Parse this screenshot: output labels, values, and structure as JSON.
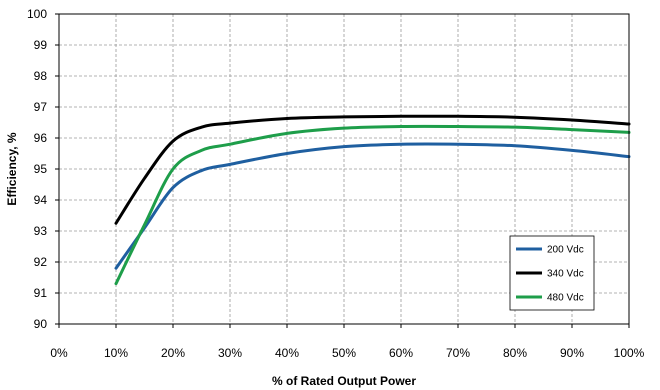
{
  "chart_data": {
    "type": "line",
    "xlabel": "% of Rated Output Power",
    "ylabel": "Efficiency, %",
    "xlim": [
      0,
      100
    ],
    "ylim": [
      90,
      100
    ],
    "x_ticks": [
      0,
      10,
      20,
      30,
      40,
      50,
      60,
      70,
      80,
      90,
      100
    ],
    "x_tick_labels": [
      "0%",
      "10%",
      "20%",
      "30%",
      "40%",
      "50%",
      "60%",
      "70%",
      "80%",
      "90%",
      "100%"
    ],
    "y_ticks": [
      90,
      91,
      92,
      93,
      94,
      95,
      96,
      97,
      98,
      99,
      100
    ],
    "y_tick_labels": [
      "90",
      "91",
      "92",
      "93",
      "94",
      "95",
      "96",
      "97",
      "98",
      "99",
      "100"
    ],
    "grid": true,
    "legend_position": "bottom-right",
    "series": [
      {
        "name": "200 Vdc",
        "color": "#1f5fa0",
        "x": [
          10,
          15,
          20,
          25,
          30,
          40,
          50,
          60,
          70,
          80,
          90,
          100
        ],
        "y": [
          91.8,
          93.1,
          94.4,
          94.95,
          95.15,
          95.5,
          95.72,
          95.8,
          95.8,
          95.75,
          95.6,
          95.4
        ]
      },
      {
        "name": "340 Vdc",
        "color": "#000000",
        "x": [
          10,
          15,
          20,
          25,
          30,
          40,
          50,
          60,
          70,
          80,
          90,
          100
        ],
        "y": [
          93.25,
          94.7,
          95.9,
          96.35,
          96.48,
          96.63,
          96.68,
          96.7,
          96.7,
          96.67,
          96.58,
          96.45
        ]
      },
      {
        "name": "480 Vdc",
        "color": "#1e9e4a",
        "x": [
          10,
          15,
          20,
          25,
          30,
          40,
          50,
          60,
          70,
          80,
          90,
          100
        ],
        "y": [
          91.3,
          93.2,
          95.0,
          95.6,
          95.8,
          96.15,
          96.32,
          96.37,
          96.37,
          96.35,
          96.27,
          96.18
        ]
      }
    ]
  }
}
